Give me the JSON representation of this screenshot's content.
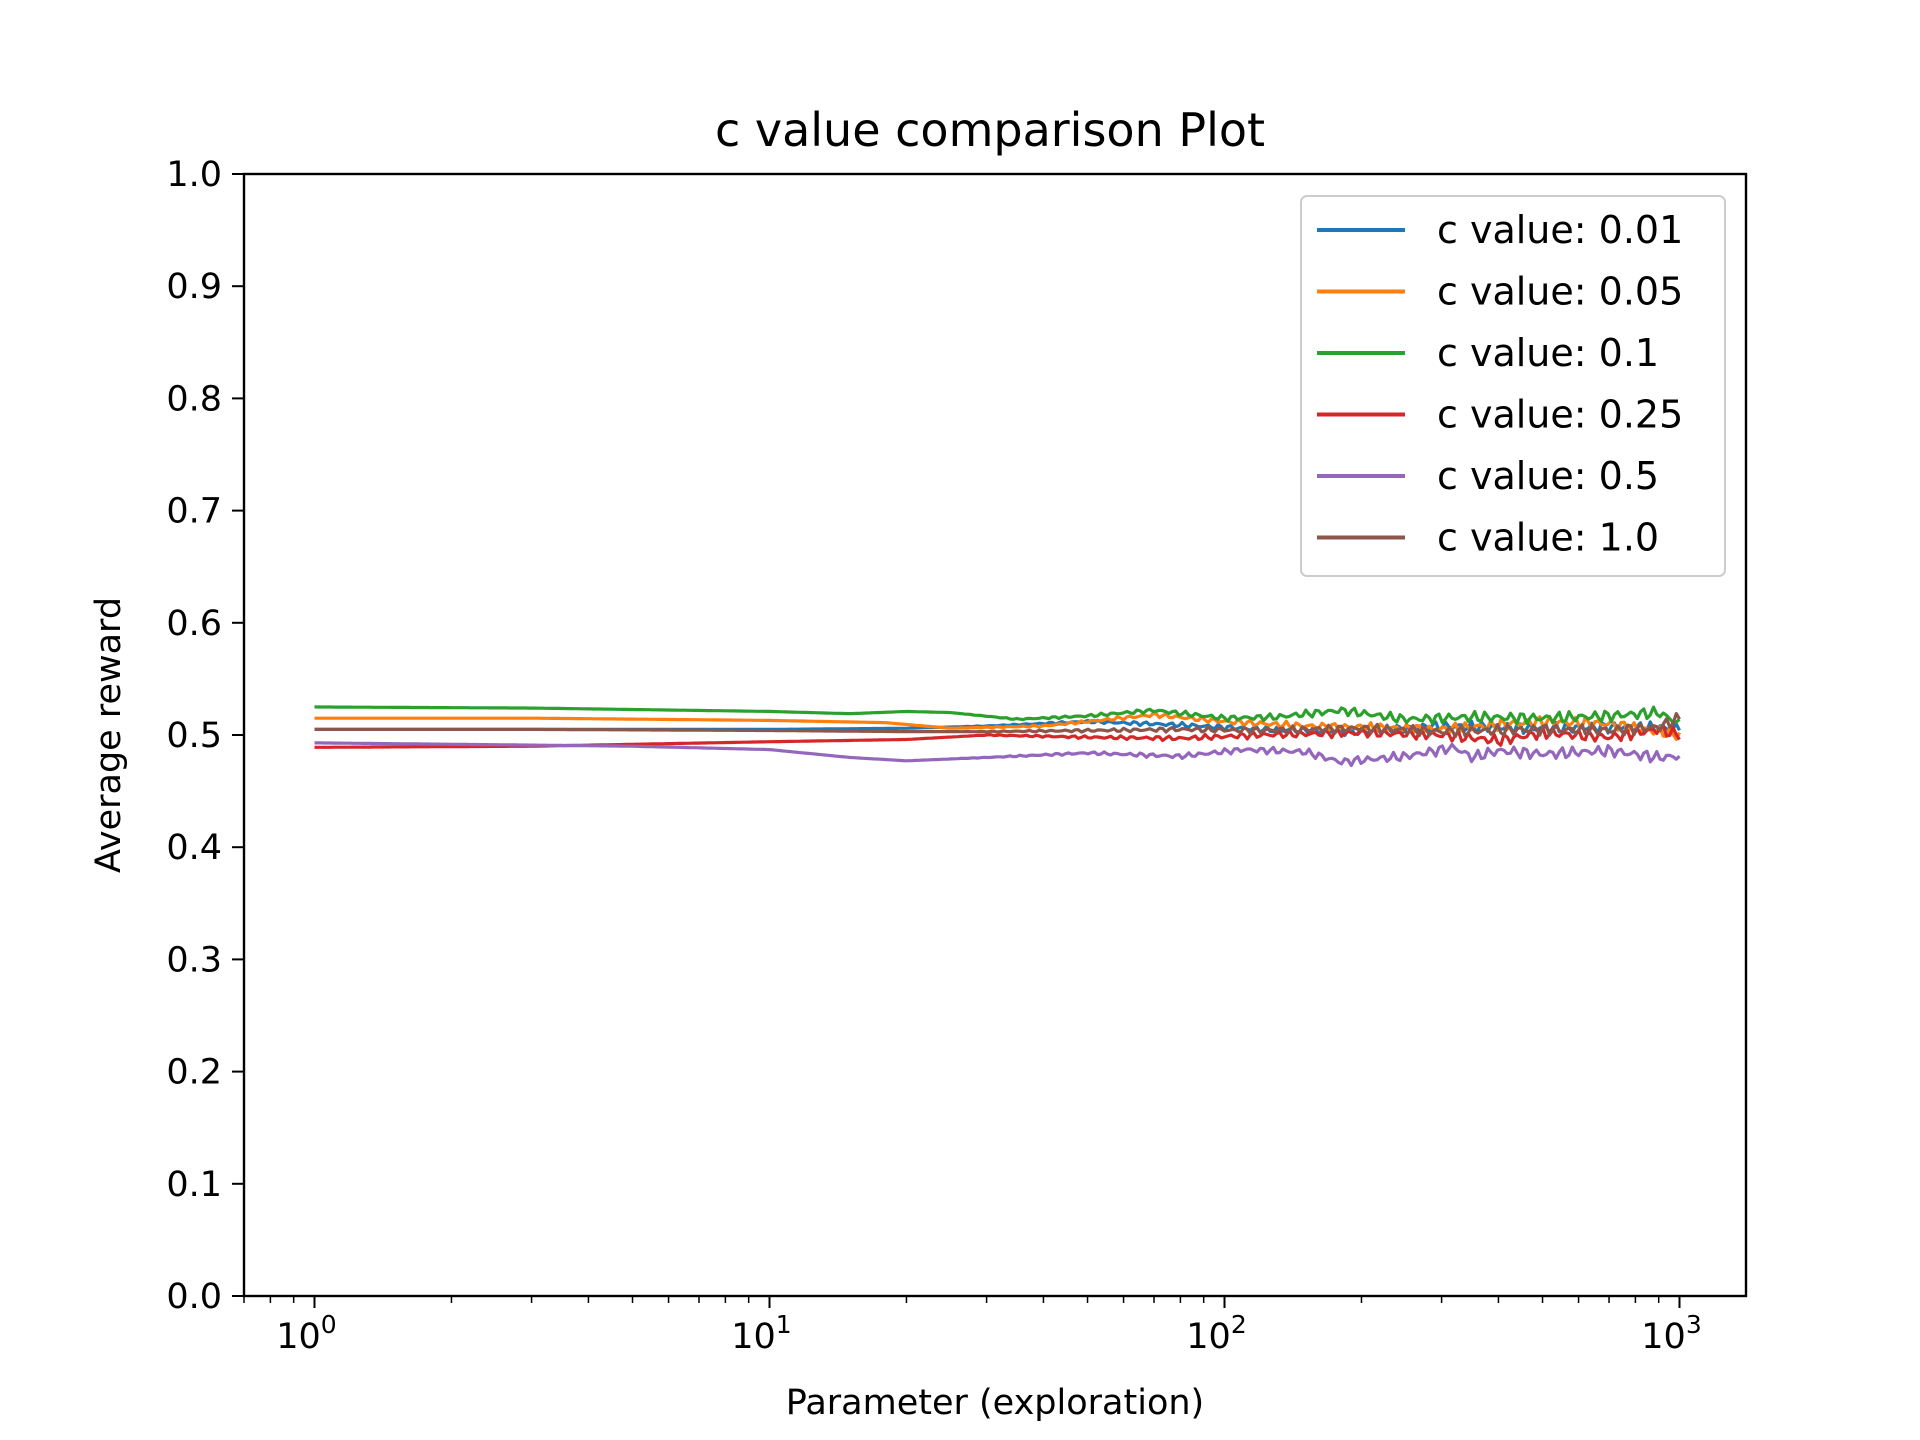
{
  "chart_data": {
    "type": "line",
    "title": "c value comparison Plot",
    "xlabel": "Parameter (exploration)",
    "ylabel": "Average reward",
    "xscale": "log",
    "xlim": [
      0.7,
      1400
    ],
    "ylim": [
      0.0,
      1.0
    ],
    "yticks": [
      "0.0",
      "0.1",
      "0.2",
      "0.3",
      "0.4",
      "0.5",
      "0.6",
      "0.7",
      "0.8",
      "0.9",
      "1.0"
    ],
    "xticks": [
      {
        "base": "10",
        "exp": "0",
        "value": 1
      },
      {
        "base": "10",
        "exp": "1",
        "value": 10
      },
      {
        "base": "10",
        "exp": "2",
        "value": 100
      },
      {
        "base": "10",
        "exp": "3",
        "value": 1000
      }
    ],
    "grid": false,
    "legend_position": "top-right",
    "series": [
      {
        "name": "c value: 0.01",
        "color": "#1f77b4",
        "x": [
          1,
          3,
          10,
          20,
          30,
          50,
          80,
          120,
          200,
          300,
          500,
          700,
          1000
        ],
        "y": [
          0.505,
          0.505,
          0.505,
          0.506,
          0.508,
          0.512,
          0.509,
          0.505,
          0.503,
          0.508,
          0.506,
          0.507,
          0.506
        ]
      },
      {
        "name": "c value: 0.05",
        "color": "#ff7f0e",
        "x": [
          1,
          3,
          10,
          18,
          25,
          40,
          70,
          100,
          150,
          200,
          300,
          500,
          700,
          1000
        ],
        "y": [
          0.515,
          0.515,
          0.513,
          0.511,
          0.506,
          0.508,
          0.518,
          0.512,
          0.508,
          0.507,
          0.505,
          0.512,
          0.51,
          0.5
        ]
      },
      {
        "name": "c value: 0.1",
        "color": "#2ca02c",
        "x": [
          1,
          3,
          10,
          15,
          20,
          25,
          35,
          50,
          70,
          100,
          130,
          180,
          250,
          350,
          500,
          700,
          900,
          1000
        ],
        "y": [
          0.525,
          0.524,
          0.521,
          0.519,
          0.521,
          0.52,
          0.514,
          0.517,
          0.522,
          0.515,
          0.516,
          0.522,
          0.514,
          0.516,
          0.515,
          0.517,
          0.52,
          0.51
        ]
      },
      {
        "name": "c value: 0.25",
        "color": "#d62728",
        "x": [
          1,
          3,
          10,
          20,
          30,
          50,
          80,
          120,
          200,
          300,
          400,
          500,
          700,
          900,
          1000
        ],
        "y": [
          0.489,
          0.49,
          0.494,
          0.496,
          0.5,
          0.498,
          0.497,
          0.5,
          0.502,
          0.5,
          0.495,
          0.502,
          0.498,
          0.505,
          0.5
        ]
      },
      {
        "name": "c value: 0.5",
        "color": "#9467bd",
        "x": [
          1,
          3,
          5,
          10,
          15,
          20,
          30,
          50,
          80,
          110,
          150,
          180,
          250,
          320,
          350,
          400,
          500,
          700,
          900,
          1000
        ],
        "y": [
          0.493,
          0.491,
          0.49,
          0.487,
          0.48,
          0.477,
          0.48,
          0.484,
          0.481,
          0.487,
          0.485,
          0.476,
          0.481,
          0.489,
          0.48,
          0.486,
          0.483,
          0.486,
          0.48,
          0.481
        ]
      },
      {
        "name": "c value: 1.0",
        "color": "#8c564b",
        "x": [
          1,
          3,
          10,
          20,
          30,
          50,
          80,
          120,
          200,
          300,
          500,
          700,
          900,
          1000
        ],
        "y": [
          0.505,
          0.505,
          0.504,
          0.503,
          0.503,
          0.504,
          0.505,
          0.504,
          0.506,
          0.503,
          0.505,
          0.504,
          0.507,
          0.515
        ]
      }
    ]
  }
}
